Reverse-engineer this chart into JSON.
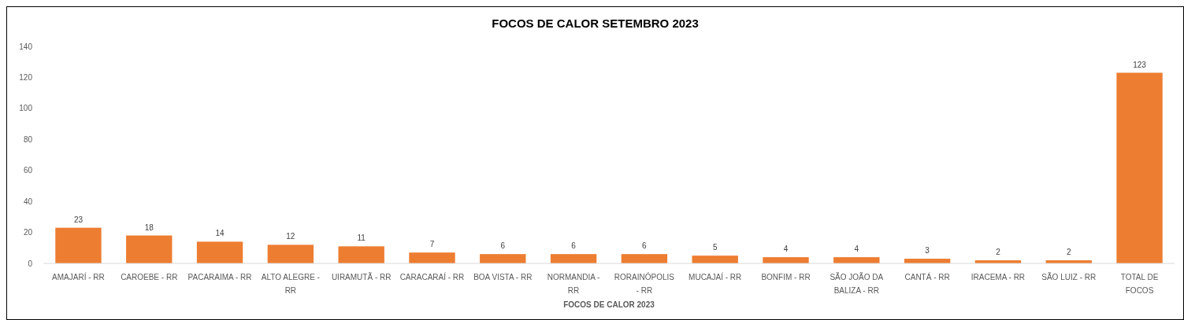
{
  "chart_data": {
    "type": "bar",
    "title": "FOCOS DE CALOR SETEMBRO 2023",
    "xlabel": "FOCOS DE CALOR 2023",
    "categories": [
      "AMAJARÍ - RR",
      "CAROEBE - RR",
      "PACARAIMA - RR",
      "ALTO ALEGRE - RR",
      "UIRAMUTÃ - RR",
      "CARACARAÍ - RR",
      "BOA VISTA - RR",
      "NORMANDIA - RR",
      "RORAINÓPOLIS - RR",
      "MUCAJAÍ - RR",
      "BONFIM - RR",
      "SÃO JOÃO DA BALIZA - RR",
      "CANTÁ - RR",
      "IRACEMA - RR",
      "SÃO LUIZ - RR",
      "TOTAL DE FOCOS"
    ],
    "values": [
      23,
      18,
      14,
      12,
      11,
      7,
      6,
      6,
      6,
      5,
      4,
      4,
      3,
      2,
      2,
      123
    ],
    "color": "#ed7d31",
    "data_labels": true,
    "ylim": [
      0,
      140
    ],
    "yticks": [
      0,
      20,
      40,
      60,
      80,
      100,
      120,
      140
    ],
    "grid": false
  }
}
